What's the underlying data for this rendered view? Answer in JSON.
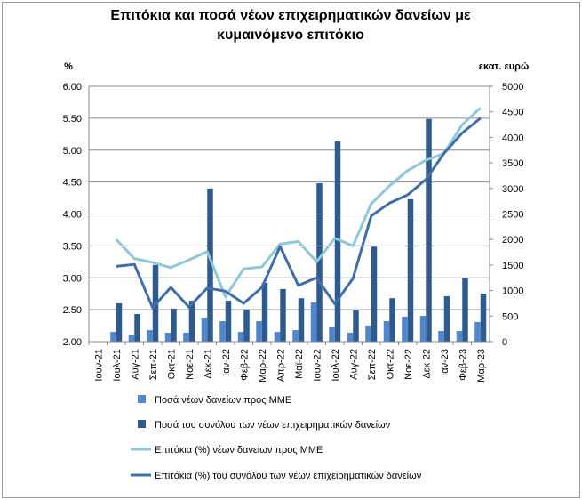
{
  "chart_data": {
    "type": "bar",
    "title_lines": [
      "Επιτόκια και ποσά νέων επιχειρηματικών δανείων με",
      "κυμαινόμενο επιτόκιο"
    ],
    "ylabel_left": "%",
    "ylabel_right": "εκατ. ευρώ",
    "ylim_left": [
      2.0,
      6.0
    ],
    "ylim_right": [
      0,
      5000
    ],
    "yticks_left": [
      "2.00",
      "2.50",
      "3.00",
      "3.50",
      "4.00",
      "4.50",
      "5.00",
      "5.50",
      "6.00"
    ],
    "yticks_right": [
      "0",
      "500",
      "1000",
      "1500",
      "2000",
      "2500",
      "3000",
      "3500",
      "4000",
      "4500",
      "5000"
    ],
    "grid": true,
    "legend_position": "bottom",
    "categories": [
      "Ιουν-21",
      "Ιουλ-21",
      "Αυγ-21",
      "Σεπ-21",
      "Οκτ-21",
      "Νοε-21",
      "Δεκ-21",
      "Ιαν-22",
      "Φεβ-22",
      "Μαρ-22",
      "Απρ-22",
      "Μαϊ-22",
      "Ιουν-22",
      "Ιουλ-22",
      "Αυγ-22",
      "Σεπ-22",
      "Οκτ-22",
      "Νοε-22",
      "Δεκ-22",
      "Ιαν-23",
      "Φεβ-23",
      "Μαρ-23"
    ],
    "series": [
      {
        "name": "Ποσά νέων δανείων προς ΜΜΕ",
        "kind": "bar",
        "axis": "right",
        "color": "#4f86cc",
        "values": [
          null,
          190,
          140,
          225,
          175,
          175,
          470,
          400,
          190,
          400,
          190,
          225,
          765,
          280,
          175,
          315,
          400,
          490,
          505,
          210,
          210,
          385
        ]
      },
      {
        "name": "Ποσά του συνόλου των νέων επιχειρηματικών δανείων",
        "kind": "bar",
        "axis": "right",
        "color": "#2e5a8e",
        "values": [
          null,
          750,
          540,
          1500,
          645,
          800,
          3000,
          800,
          630,
          1150,
          1030,
          850,
          3100,
          3920,
          610,
          1860,
          850,
          2790,
          4360,
          890,
          1250,
          940
        ]
      },
      {
        "name": "Επιτόκια (%) νέων δανείων προς ΜΜΕ",
        "kind": "line",
        "axis": "left",
        "color": "#8ec8d8",
        "values": [
          null,
          3.6,
          3.3,
          3.24,
          3.16,
          3.28,
          3.41,
          2.7,
          3.14,
          3.17,
          3.53,
          3.57,
          3.25,
          3.62,
          3.5,
          4.16,
          4.44,
          4.68,
          4.84,
          4.95,
          5.4,
          5.66
        ]
      },
      {
        "name": "Επιτόκια (%) του συνόλου των νέων επιχειρηματικών δανείων",
        "kind": "line",
        "axis": "left",
        "color": "#3f6eab",
        "values": [
          null,
          3.18,
          3.21,
          2.53,
          2.85,
          2.54,
          2.84,
          2.79,
          2.6,
          2.85,
          3.49,
          2.88,
          3.0,
          2.59,
          2.99,
          3.97,
          4.17,
          4.3,
          4.54,
          4.95,
          5.27,
          5.5
        ]
      }
    ]
  }
}
